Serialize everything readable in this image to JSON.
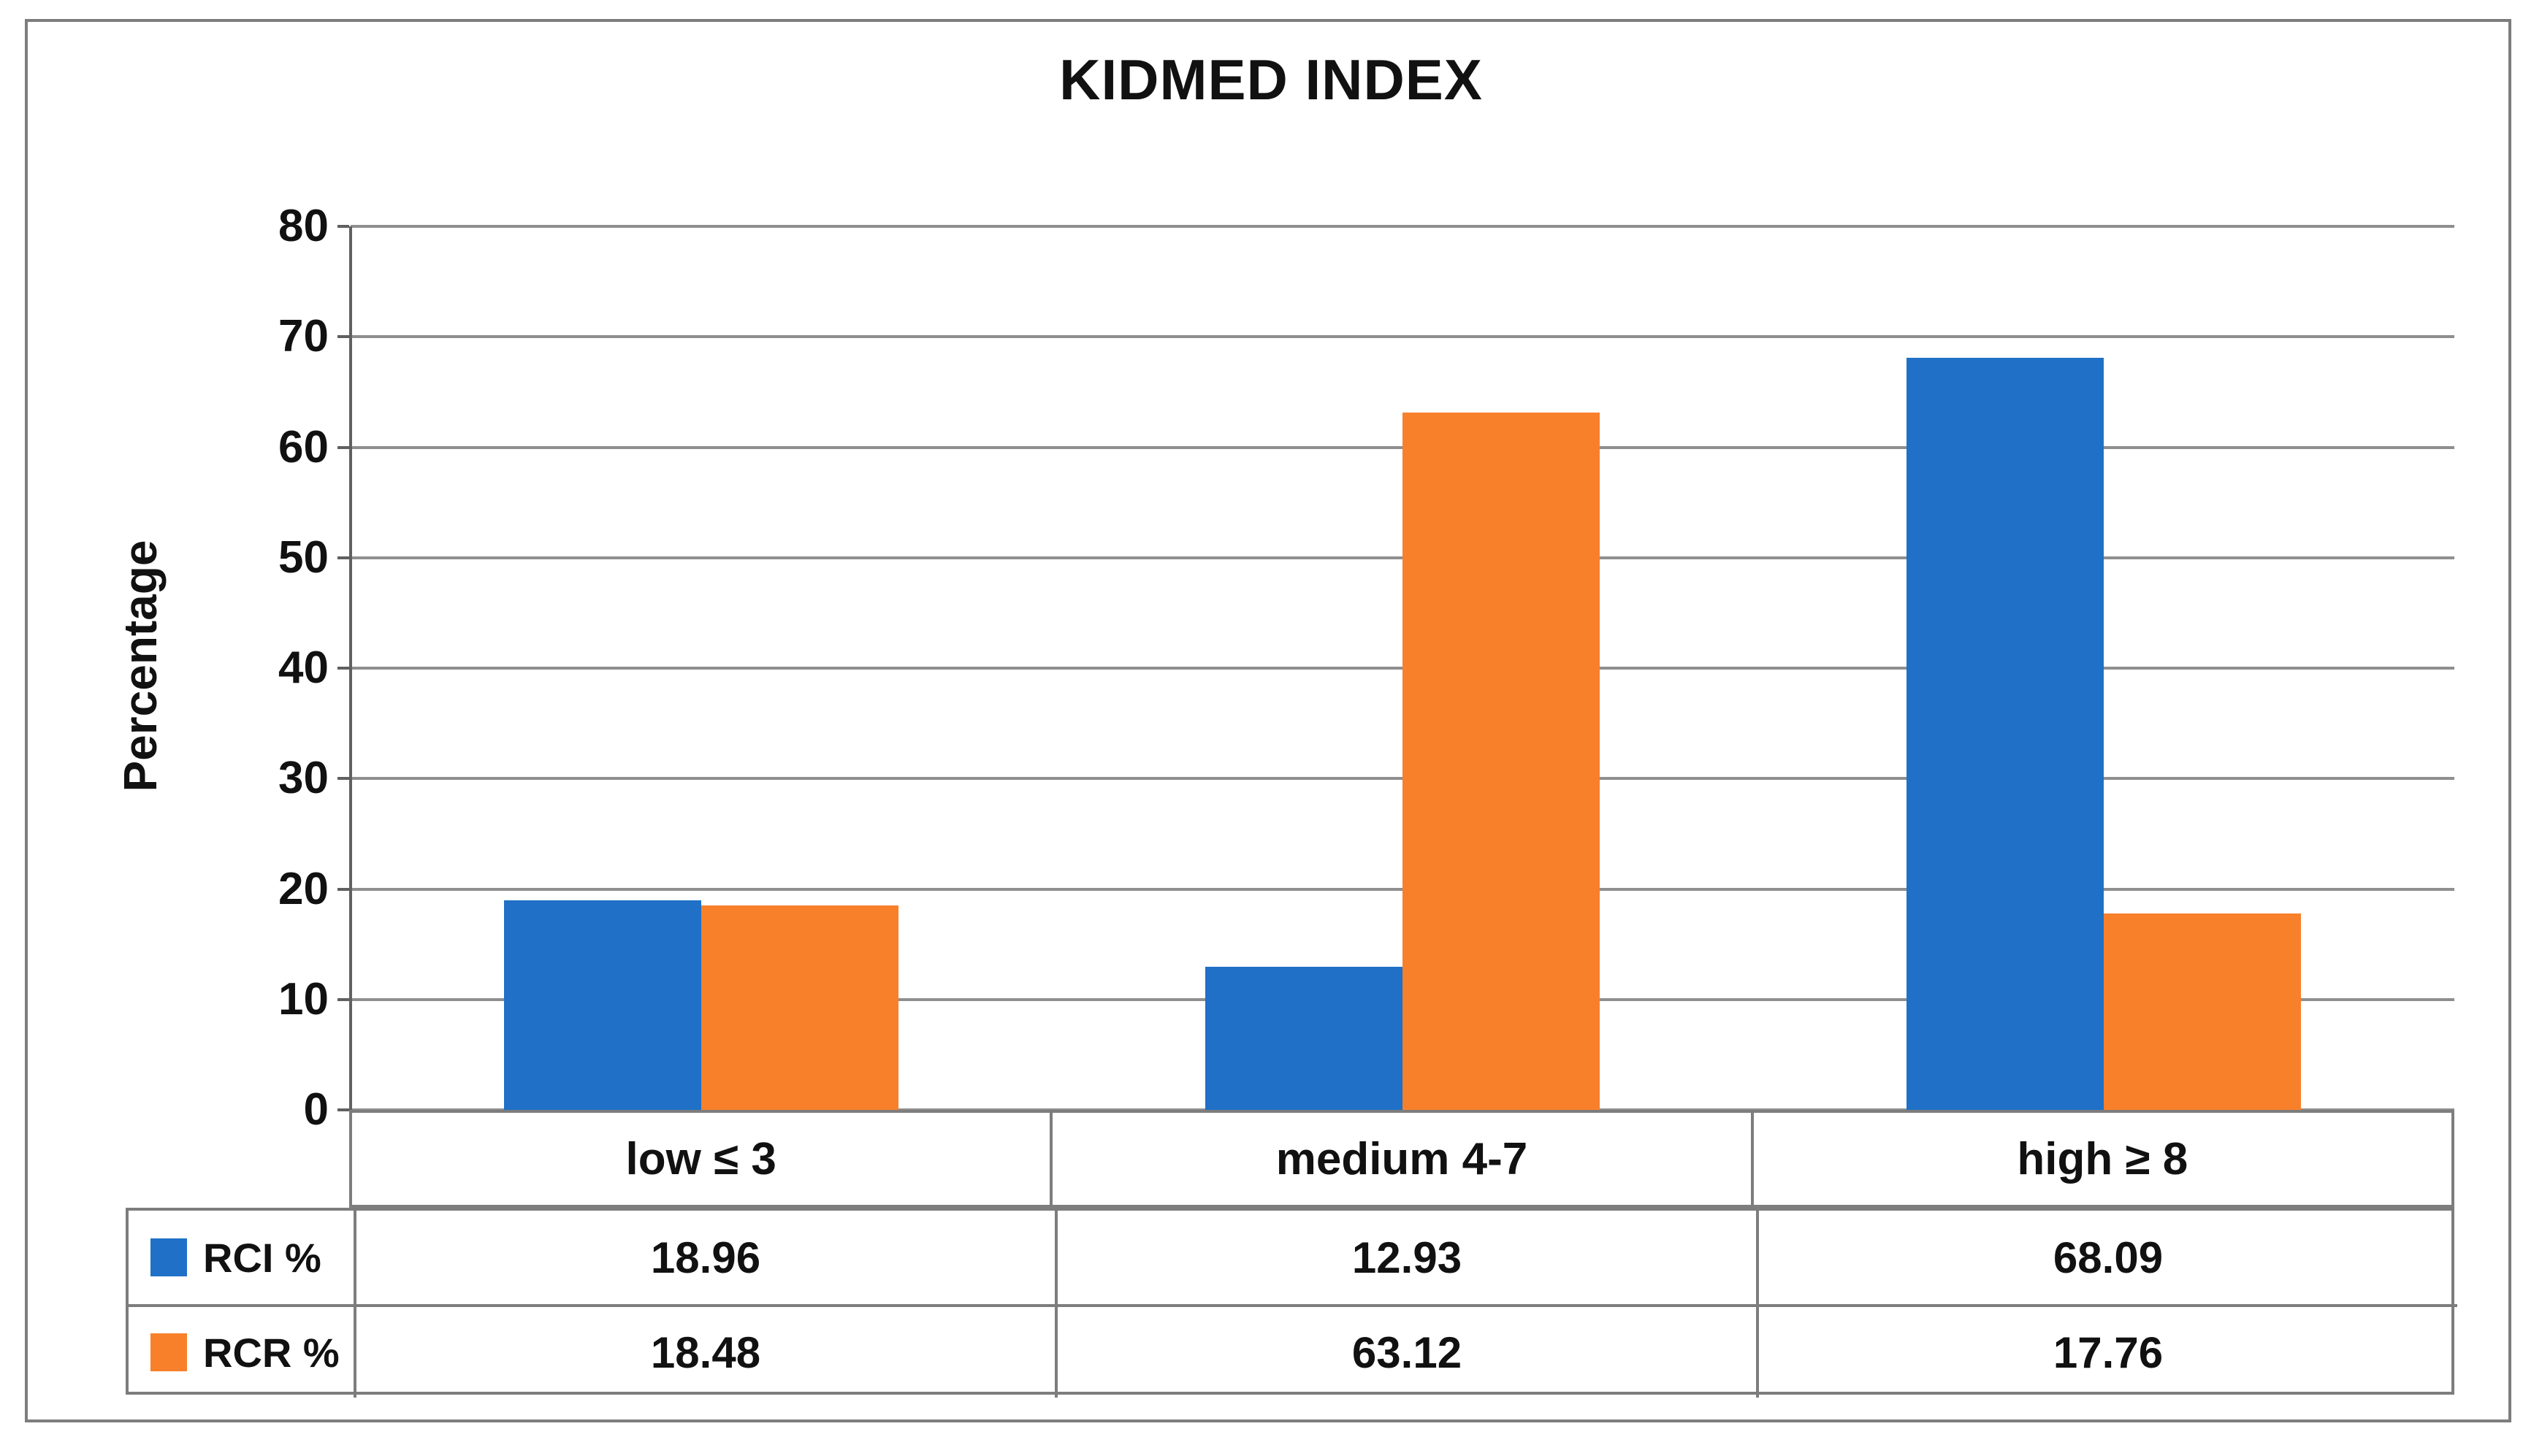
{
  "figure": {
    "kind": "excel-style clustered column chart with data table",
    "background": "#ffffff",
    "frame_border_color": "#7d7d7d"
  },
  "chart_data": {
    "type": "bar",
    "title": "KIDMED INDEX",
    "xlabel": "",
    "ylabel": "Percentage",
    "categories": [
      "low ≤ 3",
      "medium 4-7",
      "high ≥ 8"
    ],
    "series": [
      {
        "name": "RCI %",
        "color": "#1f70c6",
        "values": [
          18.96,
          12.93,
          68.09
        ]
      },
      {
        "name": "RCR %",
        "color": "#f8802b",
        "values": [
          18.48,
          63.12,
          17.76
        ]
      }
    ],
    "ylim": [
      0,
      80
    ],
    "yticks": [
      0,
      10,
      20,
      30,
      40,
      50,
      60,
      70,
      80
    ],
    "grid": "horizontal-only",
    "gridline_color": "#8f8f8f",
    "axis_color": "#606060",
    "legend_position": "data-table-left-keys",
    "data_table_shown": true
  },
  "table": {
    "rows": [
      {
        "key_color": "#1f70c6",
        "label": "RCI %",
        "values": [
          "18.96",
          "12.93",
          "68.09"
        ]
      },
      {
        "key_color": "#f8802b",
        "label": "RCR %",
        "values": [
          "18.48",
          "63.12",
          "17.76"
        ]
      }
    ]
  }
}
